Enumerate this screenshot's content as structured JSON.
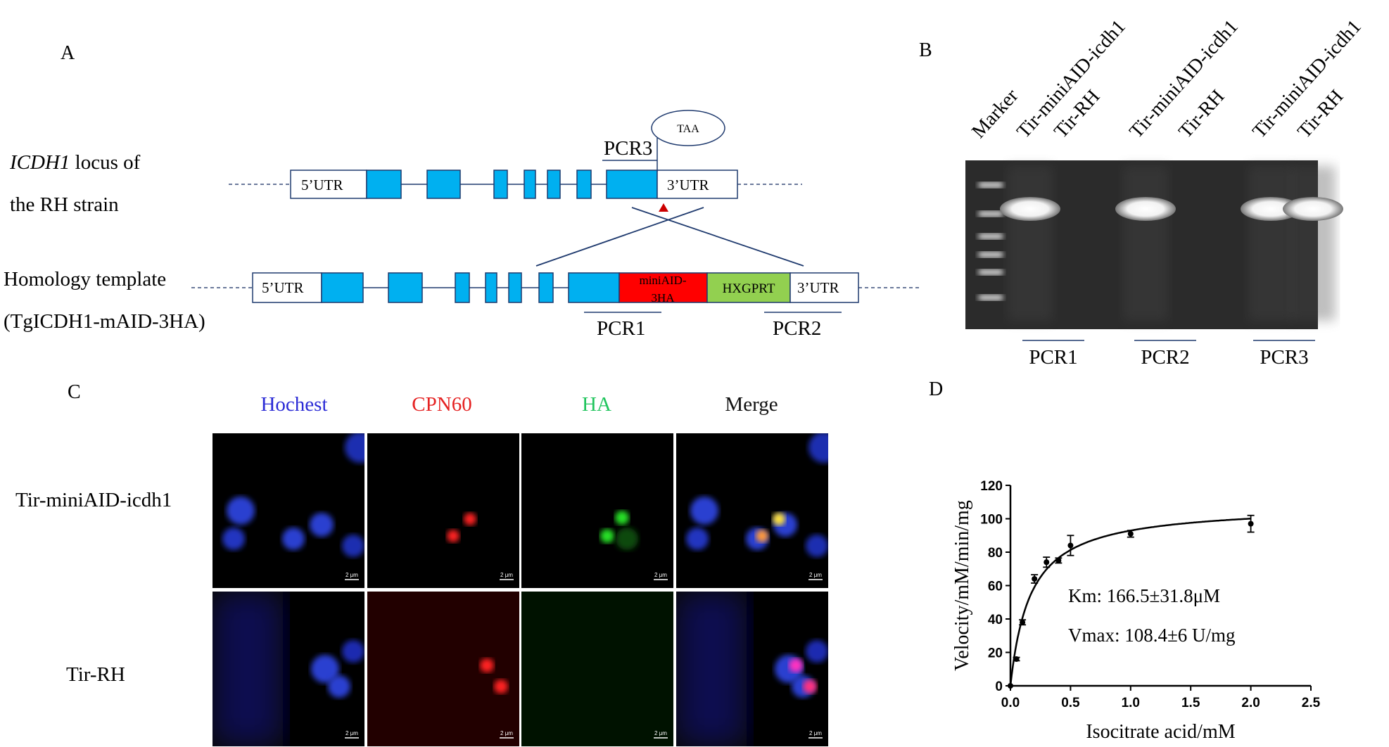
{
  "panelA": {
    "letter": "A",
    "label_italic": "ICDH1",
    "label_rest": " locus of",
    "label_line2": "the RH strain",
    "template_line1": "Homology template",
    "template_line2": "(TgICDH1-mAID-3HA)",
    "utr5": "5’UTR",
    "utr3": "3’UTR",
    "taa": "TAA",
    "pcr3": "PCR3",
    "miniaid_line1": "miniAID-",
    "miniaid_line2": "3HA",
    "hxgprt": "HXGPRT",
    "pcr1": "PCR1",
    "pcr2": "PCR2",
    "colors": {
      "exon": "#00b0f0",
      "miniaid": "#ff0000",
      "hxgprt": "#92d050",
      "site": "#cc0000"
    }
  },
  "panelB": {
    "letter": "B",
    "lanes": [
      "Marker",
      "Tir-miniAID-icdh1",
      "Tir-RH",
      "Tir-miniAID-icdh1",
      "Tir-RH",
      "Tir-miniAID-icdh1",
      "Tir-RH"
    ],
    "groups": [
      "PCR1",
      "PCR2",
      "PCR3"
    ],
    "band_present": [
      true,
      false,
      true,
      false,
      true,
      true
    ]
  },
  "panelC": {
    "letter": "C",
    "channels": [
      {
        "label": "Hochest",
        "color": "#2b2bd6"
      },
      {
        "label": "CPN60",
        "color": "#e52222"
      },
      {
        "label": "HA",
        "color": "#22c55e"
      },
      {
        "label": "Merge",
        "color": "#111111"
      }
    ],
    "rows": [
      "Tir-miniAID-icdh1",
      "Tir-RH"
    ],
    "scale_bar": "2 μm"
  },
  "panelD": {
    "letter": "D",
    "km_text": "Km: 166.5±31.8μM",
    "vmax_text": "Vmax: 108.4±6 U/mg"
  },
  "chart_data": {
    "type": "scatter",
    "xlabel": "Isocitrate acid/mM",
    "ylabel": "Velocity/mM/min/mg",
    "xlim": [
      0,
      2.5
    ],
    "ylim": [
      0,
      120
    ],
    "xticks": [
      "0.0",
      "0.5",
      "1.0",
      "1.5",
      "2.0",
      "2.5"
    ],
    "yticks": [
      "0",
      "20",
      "40",
      "60",
      "80",
      "100",
      "120"
    ],
    "grid": false,
    "x": [
      0.0,
      0.05,
      0.1,
      0.2,
      0.3,
      0.4,
      0.5,
      1.0,
      2.0
    ],
    "y": [
      0,
      16,
      38,
      64,
      74,
      75,
      84,
      91,
      97
    ],
    "error": [
      0,
      1,
      1.5,
      2.5,
      3,
      1.5,
      6,
      2,
      5
    ],
    "fit": {
      "model": "michaelis-menten",
      "vmax": 108.4,
      "km_mM": 0.1665
    }
  }
}
